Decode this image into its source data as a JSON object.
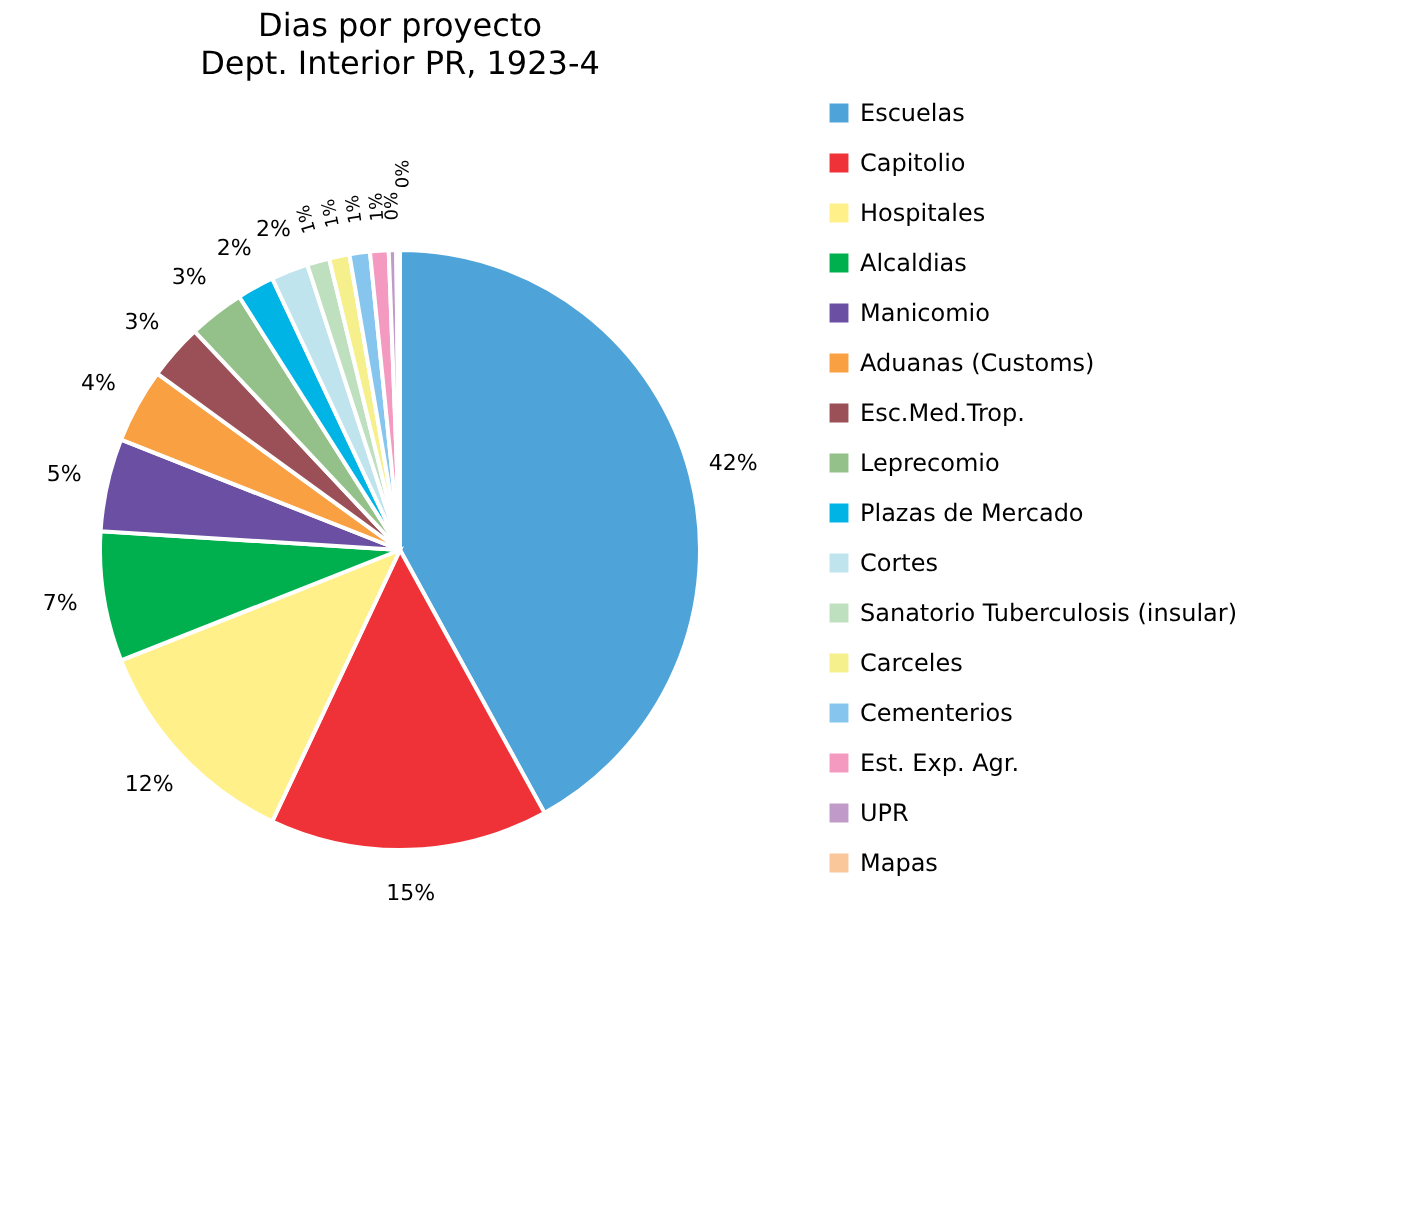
{
  "chart_data": {
    "type": "pie",
    "title": "Dias por proyecto",
    "subtitle": "Dept. Interior PR, 1923-4",
    "categories": [
      "Escuelas",
      "Capitolio",
      "Hospitales",
      "Alcaldias",
      "Manicomio",
      "Aduanas (Customs)",
      "Esc.Med.Trop.",
      "Leprecomio",
      "Plazas de Mercado",
      "Cortes",
      "Sanatorio Tuberculosis (insular)",
      "Carceles",
      "Cementerios",
      "Est. Exp. Agr.",
      "UPR",
      "Mapas"
    ],
    "values": [
      42,
      15,
      12,
      7,
      5,
      4,
      3,
      3,
      2,
      2,
      1.2,
      1.1,
      1.1,
      1.0,
      0.4,
      0.2
    ],
    "value_labels": [
      "42%",
      "15%",
      "12%",
      "7%",
      "5%",
      "4%",
      "3%",
      "3%",
      "2%",
      "2%",
      "1%",
      "1%",
      "1%",
      "1%",
      "0%",
      "0%"
    ],
    "colors": [
      "#4ea3d8",
      "#ee3237",
      "#fff08a",
      "#00b04f",
      "#6a4fa3",
      "#f9a043",
      "#9a5056",
      "#94c08a",
      "#00b4e6",
      "#bfe4ee",
      "#bfe0bf",
      "#f6f08c",
      "#86c6ee",
      "#f49ac1",
      "#c09ac9",
      "#fac79a"
    ],
    "legend": "right"
  }
}
